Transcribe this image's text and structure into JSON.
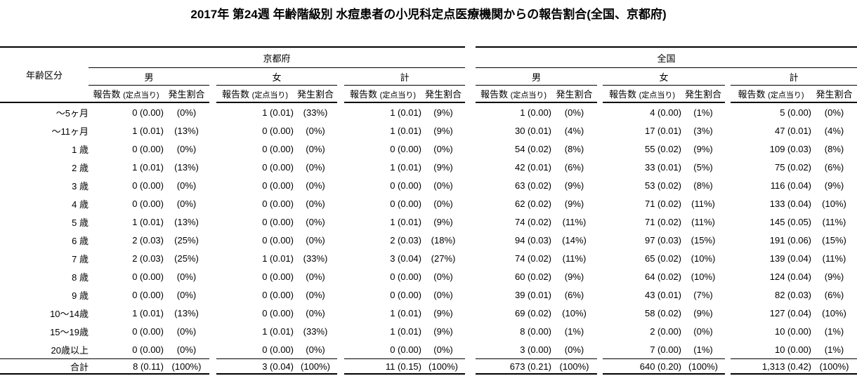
{
  "title": "2017年 第24週 年齢階級別 水痘患者の小児科定点医療機関からの報告割合(全国、京都府)",
  "table": {
    "age_header": "年齢区分",
    "regions": [
      {
        "label": "京都府"
      },
      {
        "label": "全国"
      }
    ],
    "genders": [
      "男",
      "女",
      "計"
    ],
    "col_headers": {
      "count": "報告数",
      "count_small": "(定点当り)",
      "pct": "発生割合"
    },
    "rows": [
      {
        "age": "～5ヶ月",
        "cells": [
          [
            "0 (0.00)",
            "(0%)"
          ],
          [
            "1 (0.01)",
            "(33%)"
          ],
          [
            "1 (0.01)",
            "(9%)"
          ],
          [
            "1 (0.00)",
            "(0%)"
          ],
          [
            "4 (0.00)",
            "(1%)"
          ],
          [
            "5 (0.00)",
            "(0%)"
          ]
        ]
      },
      {
        "age": "～11ヶ月",
        "cells": [
          [
            "1 (0.01)",
            "(13%)"
          ],
          [
            "0 (0.00)",
            "(0%)"
          ],
          [
            "1 (0.01)",
            "(9%)"
          ],
          [
            "30 (0.01)",
            "(4%)"
          ],
          [
            "17 (0.01)",
            "(3%)"
          ],
          [
            "47 (0.01)",
            "(4%)"
          ]
        ]
      },
      {
        "age": "1 歳",
        "cells": [
          [
            "0 (0.00)",
            "(0%)"
          ],
          [
            "0 (0.00)",
            "(0%)"
          ],
          [
            "0 (0.00)",
            "(0%)"
          ],
          [
            "54 (0.02)",
            "(8%)"
          ],
          [
            "55 (0.02)",
            "(9%)"
          ],
          [
            "109 (0.03)",
            "(8%)"
          ]
        ]
      },
      {
        "age": "2 歳",
        "cells": [
          [
            "1 (0.01)",
            "(13%)"
          ],
          [
            "0 (0.00)",
            "(0%)"
          ],
          [
            "1 (0.01)",
            "(9%)"
          ],
          [
            "42 (0.01)",
            "(6%)"
          ],
          [
            "33 (0.01)",
            "(5%)"
          ],
          [
            "75 (0.02)",
            "(6%)"
          ]
        ]
      },
      {
        "age": "3 歳",
        "cells": [
          [
            "0 (0.00)",
            "(0%)"
          ],
          [
            "0 (0.00)",
            "(0%)"
          ],
          [
            "0 (0.00)",
            "(0%)"
          ],
          [
            "63 (0.02)",
            "(9%)"
          ],
          [
            "53 (0.02)",
            "(8%)"
          ],
          [
            "116 (0.04)",
            "(9%)"
          ]
        ]
      },
      {
        "age": "4 歳",
        "cells": [
          [
            "0 (0.00)",
            "(0%)"
          ],
          [
            "0 (0.00)",
            "(0%)"
          ],
          [
            "0 (0.00)",
            "(0%)"
          ],
          [
            "62 (0.02)",
            "(9%)"
          ],
          [
            "71 (0.02)",
            "(11%)"
          ],
          [
            "133 (0.04)",
            "(10%)"
          ]
        ]
      },
      {
        "age": "5 歳",
        "cells": [
          [
            "1 (0.01)",
            "(13%)"
          ],
          [
            "0 (0.00)",
            "(0%)"
          ],
          [
            "1 (0.01)",
            "(9%)"
          ],
          [
            "74 (0.02)",
            "(11%)"
          ],
          [
            "71 (0.02)",
            "(11%)"
          ],
          [
            "145 (0.05)",
            "(11%)"
          ]
        ]
      },
      {
        "age": "6 歳",
        "cells": [
          [
            "2 (0.03)",
            "(25%)"
          ],
          [
            "0 (0.00)",
            "(0%)"
          ],
          [
            "2 (0.03)",
            "(18%)"
          ],
          [
            "94 (0.03)",
            "(14%)"
          ],
          [
            "97 (0.03)",
            "(15%)"
          ],
          [
            "191 (0.06)",
            "(15%)"
          ]
        ]
      },
      {
        "age": "7 歳",
        "cells": [
          [
            "2 (0.03)",
            "(25%)"
          ],
          [
            "1 (0.01)",
            "(33%)"
          ],
          [
            "3 (0.04)",
            "(27%)"
          ],
          [
            "74 (0.02)",
            "(11%)"
          ],
          [
            "65 (0.02)",
            "(10%)"
          ],
          [
            "139 (0.04)",
            "(11%)"
          ]
        ]
      },
      {
        "age": "8 歳",
        "cells": [
          [
            "0 (0.00)",
            "(0%)"
          ],
          [
            "0 (0.00)",
            "(0%)"
          ],
          [
            "0 (0.00)",
            "(0%)"
          ],
          [
            "60 (0.02)",
            "(9%)"
          ],
          [
            "64 (0.02)",
            "(10%)"
          ],
          [
            "124 (0.04)",
            "(9%)"
          ]
        ]
      },
      {
        "age": "9 歳",
        "cells": [
          [
            "0 (0.00)",
            "(0%)"
          ],
          [
            "0 (0.00)",
            "(0%)"
          ],
          [
            "0 (0.00)",
            "(0%)"
          ],
          [
            "39 (0.01)",
            "(6%)"
          ],
          [
            "43 (0.01)",
            "(7%)"
          ],
          [
            "82 (0.03)",
            "(6%)"
          ]
        ]
      },
      {
        "age": "10～14歳",
        "cells": [
          [
            "1 (0.01)",
            "(13%)"
          ],
          [
            "0 (0.00)",
            "(0%)"
          ],
          [
            "1 (0.01)",
            "(9%)"
          ],
          [
            "69 (0.02)",
            "(10%)"
          ],
          [
            "58 (0.02)",
            "(9%)"
          ],
          [
            "127 (0.04)",
            "(10%)"
          ]
        ]
      },
      {
        "age": "15～19歳",
        "cells": [
          [
            "0 (0.00)",
            "(0%)"
          ],
          [
            "1 (0.01)",
            "(33%)"
          ],
          [
            "1 (0.01)",
            "(9%)"
          ],
          [
            "8 (0.00)",
            "(1%)"
          ],
          [
            "2 (0.00)",
            "(0%)"
          ],
          [
            "10 (0.00)",
            "(1%)"
          ]
        ]
      },
      {
        "age": "20歳以上",
        "cells": [
          [
            "0 (0.00)",
            "(0%)"
          ],
          [
            "0 (0.00)",
            "(0%)"
          ],
          [
            "0 (0.00)",
            "(0%)"
          ],
          [
            "3 (0.00)",
            "(0%)"
          ],
          [
            "7 (0.00)",
            "(1%)"
          ],
          [
            "10 (0.00)",
            "(1%)"
          ]
        ]
      }
    ],
    "total_row": {
      "age": "合計",
      "cells": [
        [
          "8 (0.11)",
          "(100%)"
        ],
        [
          "3 (0.04)",
          "(100%)"
        ],
        [
          "11 (0.15)",
          "(100%)"
        ],
        [
          "673 (0.21)",
          "(100%)"
        ],
        [
          "640 (0.20)",
          "(100%)"
        ],
        [
          "1,313 (0.42)",
          "(100%)"
        ]
      ]
    }
  }
}
